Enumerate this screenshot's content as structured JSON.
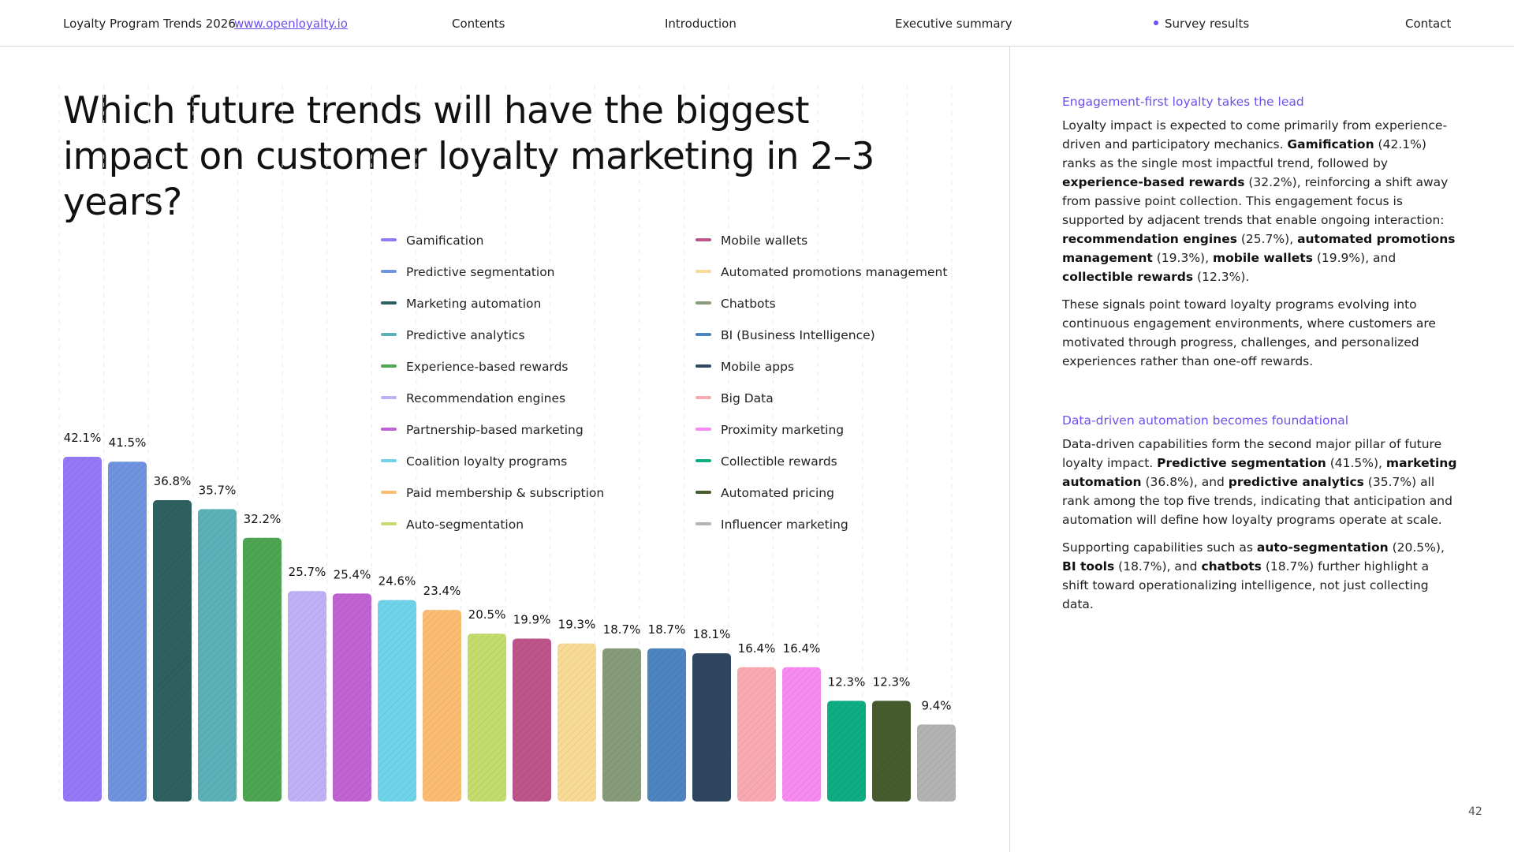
{
  "nav": {
    "brand": "Loyalty Program Trends 2026",
    "link": "www.openloyalty.io",
    "items": [
      "Contents",
      "Introduction",
      "Executive summary",
      "Survey results",
      "Contact"
    ],
    "active": "Survey results"
  },
  "title": "Which future trends will have the biggest impact on customer loyalty marketing in 2–3 years?",
  "chart_data": {
    "type": "bar",
    "title": "Which future trends will have the biggest impact on customer loyalty marketing in 2–3 years?",
    "xlabel": "",
    "ylabel": "",
    "ylim": [
      0,
      45
    ],
    "grid": "vertical dashed",
    "legend_position": "top-right",
    "categories": [
      "Gamification",
      "Predictive segmentation",
      "Marketing automation",
      "Predictive analytics",
      "Experience-based rewards",
      "Recommendation engines",
      "Partnership-based marketing",
      "Coalition loyalty programs",
      "Paid membership & subscription",
      "Auto-segmentation",
      "Mobile wallets",
      "Automated promotions management",
      "Chatbots",
      "BI (Business Intelligence)",
      "Mobile apps",
      "Big Data",
      "Proximity marketing",
      "Collectible rewards",
      "Automated pricing",
      "Influencer marketing"
    ],
    "values": [
      42.1,
      41.5,
      36.8,
      35.7,
      32.2,
      25.7,
      25.4,
      24.6,
      23.4,
      20.5,
      19.9,
      19.3,
      18.7,
      18.7,
      18.1,
      16.4,
      16.4,
      12.3,
      12.3,
      9.4
    ],
    "value_labels": [
      "42.1%",
      "41.5%",
      "36.8%",
      "35.7%",
      "32.2%",
      "25.7%",
      "25.4%",
      "24.6%",
      "23.4%",
      "20.5%",
      "19.9%",
      "19.3%",
      "18.7%",
      "18.7%",
      "18.1%",
      "16.4%",
      "16.4%",
      "12.3%",
      "12.3%",
      "9.4%"
    ],
    "colors": [
      "#9479f7",
      "#6f93de",
      "#2e6060",
      "#5ab1b7",
      "#4ea653",
      "#c0b1f7",
      "#c063d3",
      "#6fd3ea",
      "#fbbd73",
      "#c3dc6c",
      "#bd548a",
      "#f8dc95",
      "#869b7a",
      "#4e84c0",
      "#2f4661",
      "#f9aab1",
      "#f78bf1",
      "#0eae82",
      "#465c2e",
      "#b3b3b3"
    ]
  },
  "side": {
    "s1_heading": "Engagement-first loyalty takes the lead",
    "s1_p1": [
      {
        "t": "Loyalty impact is expected to come primarily from experience-driven and participatory mechanics. "
      },
      {
        "t": "Gamification",
        "b": true
      },
      {
        "t": " (42.1%) ranks as the single most impactful trend, followed by "
      },
      {
        "t": "experience-based rewards",
        "b": true
      },
      {
        "t": " (32.2%), reinforcing a shift away from passive point collection. This engagement focus is supported by adjacent trends that enable ongoing interaction: "
      },
      {
        "t": "recommendation engines",
        "b": true
      },
      {
        "t": " (25.7%), "
      },
      {
        "t": "automated promotions management",
        "b": true
      },
      {
        "t": " (19.3%), "
      },
      {
        "t": "mobile wallets",
        "b": true
      },
      {
        "t": " (19.9%), and "
      },
      {
        "t": "collectible rewards",
        "b": true
      },
      {
        "t": " (12.3%)."
      }
    ],
    "s1_p2": "These signals point toward loyalty programs evolving into continuous engagement environments, where customers are motivated through progress, challenges, and personalized experiences rather than one-off rewards.",
    "s2_heading": "Data-driven automation becomes foundational",
    "s2_p1": [
      {
        "t": "Data-driven capabilities form the second major pillar of future loyalty impact. "
      },
      {
        "t": "Predictive segmentation",
        "b": true
      },
      {
        "t": " (41.5%), "
      },
      {
        "t": "marketing automation",
        "b": true
      },
      {
        "t": " (36.8%), and "
      },
      {
        "t": "predictive analytics",
        "b": true
      },
      {
        "t": " (35.7%) all rank among the top five trends, indicating that anticipation and automation will define how loyalty programs operate at scale."
      }
    ],
    "s2_p2": [
      {
        "t": "Supporting capabilities such as "
      },
      {
        "t": "auto-segmentation",
        "b": true
      },
      {
        "t": " (20.5%), "
      },
      {
        "t": "BI tools",
        "b": true
      },
      {
        "t": " (18.7%), and "
      },
      {
        "t": "chatbots",
        "b": true
      },
      {
        "t": " (18.7%) further highlight a shift toward operationalizing intelligence, not just collecting data."
      }
    ]
  },
  "page_number": "42"
}
